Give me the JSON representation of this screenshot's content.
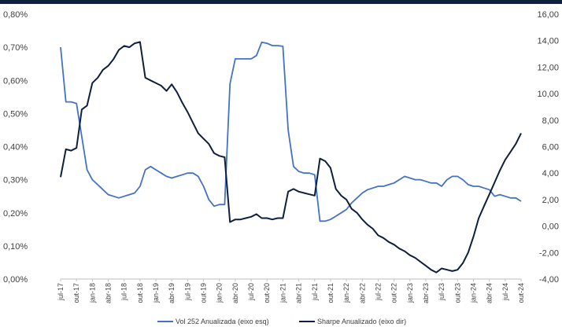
{
  "chart_data": {
    "type": "line",
    "xlabel": "",
    "ylabel_left": "",
    "ylabel_right": "",
    "x_start": "2017-07",
    "x_end": "2024-10",
    "x_ticks": [
      "jul-17",
      "out-17",
      "jan-18",
      "abr-18",
      "jul-18",
      "out-18",
      "jan-19",
      "abr-19",
      "jul-19",
      "out-19",
      "jan-20",
      "abr-20",
      "jul-20",
      "out-20",
      "jan-21",
      "abr-21",
      "jul-21",
      "out-21",
      "jan-22",
      "abr-22",
      "jul-22",
      "out-22",
      "jan-23",
      "abr-23",
      "jul-23",
      "out-23",
      "jan-24",
      "abr-24",
      "jul-24",
      "out-24"
    ],
    "y_left": {
      "ylim": [
        0,
        0.8
      ],
      "tick_labels": [
        "0,00%",
        "0,10%",
        "0,20%",
        "0,30%",
        "0,40%",
        "0,50%",
        "0,60%",
        "0,70%",
        "0,80%"
      ]
    },
    "y_right": {
      "ylim": [
        -4,
        16
      ],
      "tick_labels": [
        "-4,00",
        "-2,00",
        "0,00",
        "2,00",
        "4,00",
        "6,00",
        "8,00",
        "10,00",
        "12,00",
        "14,00",
        "16,00"
      ]
    },
    "grid": false,
    "legend_position": "bottom",
    "series": [
      {
        "name": "Vol 252 Anualizada (eixo esq)",
        "axis": "left",
        "color": "#4472c4",
        "x": [
          "2017-07",
          "2017-08",
          "2017-09",
          "2017-10",
          "2017-11",
          "2017-12",
          "2018-01",
          "2018-02",
          "2018-03",
          "2018-04",
          "2018-05",
          "2018-06",
          "2018-07",
          "2018-08",
          "2018-09",
          "2018-10",
          "2018-11",
          "2018-12",
          "2019-01",
          "2019-02",
          "2019-03",
          "2019-04",
          "2019-05",
          "2019-06",
          "2019-07",
          "2019-08",
          "2019-09",
          "2019-10",
          "2019-11",
          "2019-12",
          "2020-01",
          "2020-02",
          "2020-03",
          "2020-04",
          "2020-05",
          "2020-06",
          "2020-07",
          "2020-08",
          "2020-09",
          "2020-10",
          "2020-11",
          "2020-12",
          "2021-01",
          "2021-02",
          "2021-03",
          "2021-04",
          "2021-05",
          "2021-06",
          "2021-07",
          "2021-08",
          "2021-09",
          "2021-10",
          "2021-11",
          "2021-12",
          "2022-01",
          "2022-02",
          "2022-03",
          "2022-04",
          "2022-05",
          "2022-06",
          "2022-07",
          "2022-08",
          "2022-09",
          "2022-10",
          "2022-11",
          "2022-12",
          "2023-01",
          "2023-02",
          "2023-03",
          "2023-04",
          "2023-05",
          "2023-06",
          "2023-07",
          "2023-08",
          "2023-09",
          "2023-10",
          "2023-11",
          "2023-12",
          "2024-01",
          "2024-02",
          "2024-03",
          "2024-04",
          "2024-05",
          "2024-06",
          "2024-07",
          "2024-08",
          "2024-09",
          "2024-10"
        ],
        "values": [
          0.7,
          0.535,
          0.535,
          0.53,
          0.43,
          0.33,
          0.3,
          0.285,
          0.27,
          0.255,
          0.25,
          0.245,
          0.25,
          0.255,
          0.26,
          0.28,
          0.33,
          0.34,
          0.33,
          0.32,
          0.31,
          0.305,
          0.31,
          0.315,
          0.32,
          0.32,
          0.31,
          0.28,
          0.24,
          0.22,
          0.225,
          0.225,
          0.59,
          0.665,
          0.665,
          0.665,
          0.665,
          0.675,
          0.715,
          0.712,
          0.705,
          0.705,
          0.703,
          0.45,
          0.34,
          0.325,
          0.32,
          0.32,
          0.315,
          0.175,
          0.175,
          0.18,
          0.19,
          0.2,
          0.21,
          0.23,
          0.245,
          0.26,
          0.27,
          0.275,
          0.28,
          0.28,
          0.285,
          0.29,
          0.3,
          0.31,
          0.305,
          0.3,
          0.3,
          0.295,
          0.29,
          0.29,
          0.28,
          0.3,
          0.31,
          0.31,
          0.3,
          0.285,
          0.28,
          0.28,
          0.275,
          0.27,
          0.25,
          0.255,
          0.25,
          0.245,
          0.245,
          0.235
        ]
      },
      {
        "name": "Sharpe Anualizado (eixo dir)",
        "axis": "right",
        "color": "#0f1f3d",
        "x": [
          "2017-07",
          "2017-08",
          "2017-09",
          "2017-10",
          "2017-11",
          "2017-12",
          "2018-01",
          "2018-02",
          "2018-03",
          "2018-04",
          "2018-05",
          "2018-06",
          "2018-07",
          "2018-08",
          "2018-09",
          "2018-10",
          "2018-11",
          "2018-12",
          "2019-01",
          "2019-02",
          "2019-03",
          "2019-04",
          "2019-05",
          "2019-06",
          "2019-07",
          "2019-08",
          "2019-09",
          "2019-10",
          "2019-11",
          "2019-12",
          "2020-01",
          "2020-02",
          "2020-03",
          "2020-04",
          "2020-05",
          "2020-06",
          "2020-07",
          "2020-08",
          "2020-09",
          "2020-10",
          "2020-11",
          "2020-12",
          "2021-01",
          "2021-02",
          "2021-03",
          "2021-04",
          "2021-05",
          "2021-06",
          "2021-07",
          "2021-08",
          "2021-09",
          "2021-10",
          "2021-11",
          "2021-12",
          "2022-01",
          "2022-02",
          "2022-03",
          "2022-04",
          "2022-05",
          "2022-06",
          "2022-07",
          "2022-08",
          "2022-09",
          "2022-10",
          "2022-11",
          "2022-12",
          "2023-01",
          "2023-02",
          "2023-03",
          "2023-04",
          "2023-05",
          "2023-06",
          "2023-07",
          "2023-08",
          "2023-09",
          "2023-10",
          "2023-11",
          "2023-12",
          "2024-01",
          "2024-02",
          "2024-03",
          "2024-04",
          "2024-05",
          "2024-06",
          "2024-07",
          "2024-08",
          "2024-09",
          "2024-10"
        ],
        "values": [
          3.7,
          5.8,
          5.7,
          5.9,
          8.8,
          9.1,
          10.8,
          11.2,
          11.8,
          12.1,
          12.6,
          13.3,
          13.6,
          13.5,
          13.8,
          13.9,
          11.2,
          11.0,
          10.8,
          10.6,
          10.2,
          10.7,
          10.1,
          9.3,
          8.6,
          7.8,
          7.0,
          6.6,
          6.2,
          5.5,
          5.3,
          5.2,
          0.3,
          0.5,
          0.5,
          0.6,
          0.7,
          0.9,
          0.6,
          0.6,
          0.5,
          0.6,
          0.6,
          2.6,
          2.8,
          2.6,
          2.5,
          2.4,
          2.3,
          5.1,
          4.9,
          4.4,
          2.8,
          2.3,
          2.0,
          1.3,
          1.0,
          0.5,
          0.1,
          -0.2,
          -0.7,
          -0.9,
          -1.2,
          -1.4,
          -1.7,
          -1.9,
          -2.2,
          -2.4,
          -2.7,
          -3.0,
          -3.3,
          -3.5,
          -3.2,
          -3.3,
          -3.4,
          -3.3,
          -2.8,
          -2.0,
          -0.8,
          0.6,
          1.5,
          2.4,
          3.3,
          4.2,
          5.0,
          5.6,
          6.2,
          7.0
        ]
      }
    ]
  }
}
